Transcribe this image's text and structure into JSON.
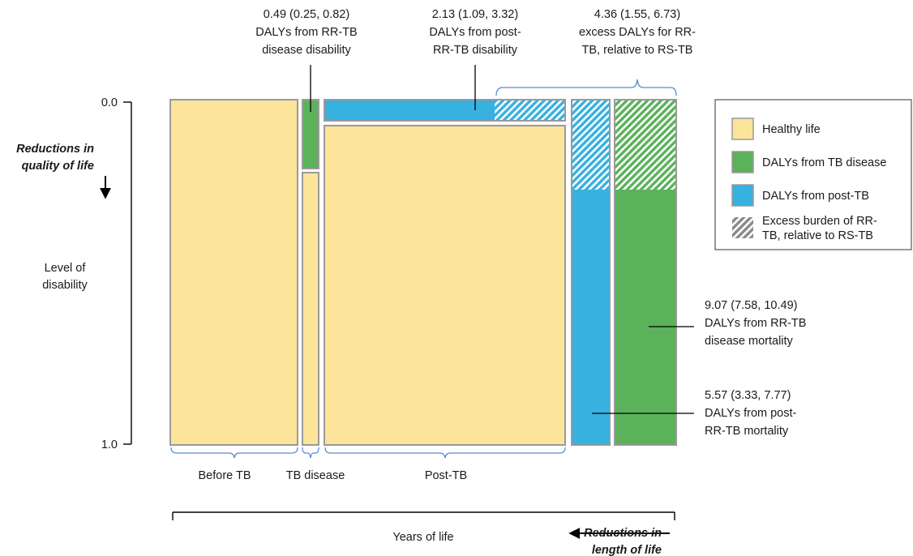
{
  "colors": {
    "healthy": "#FDE49B",
    "tb_disease": "#5BB25B",
    "post_tb": "#36B1E0",
    "hatch": "#8A8A8A",
    "border": "#9A9A9A",
    "bracket": "#5B8BD0",
    "line": "#000000"
  },
  "y_axis": {
    "tick_top": "0.0",
    "tick_bottom": "1.0",
    "label_line1": "Level of",
    "label_line2": "disability",
    "reduction_line1": "Reductions in",
    "reduction_line2": "quality of life"
  },
  "x_axis": {
    "label": "Years of life",
    "reduction_line1": "Reductions in",
    "reduction_line2": "length of life"
  },
  "segments": {
    "before_tb": "Before TB",
    "tb_disease": "TB disease",
    "post_tb": "Post-TB"
  },
  "annotations": {
    "rr_tb_disability": [
      "0.49 (0.25, 0.82)",
      "DALYs from RR-TB",
      "disease disability"
    ],
    "post_rr_tb_disability": [
      "2.13 (1.09, 3.32)",
      "DALYs from post-",
      "RR-TB disability"
    ],
    "excess_dalys": [
      "4.36 (1.55, 6.73)",
      "excess DALYs for RR-",
      "TB, relative to RS-TB"
    ],
    "rr_tb_mortality": [
      "9.07 (7.58, 10.49)",
      "DALYs from RR-TB",
      "disease mortality"
    ],
    "post_rr_tb_mortality": [
      "5.57 (3.33, 7.77)",
      "DALYs from post-",
      "RR-TB mortality"
    ]
  },
  "legend": {
    "healthy": "Healthy life",
    "tb_disease": "DALYs from TB disease",
    "post_tb": "DALYs from post-TB",
    "excess_line1": "Excess burden of RR-",
    "excess_line2": "TB, relative to RS-TB"
  }
}
